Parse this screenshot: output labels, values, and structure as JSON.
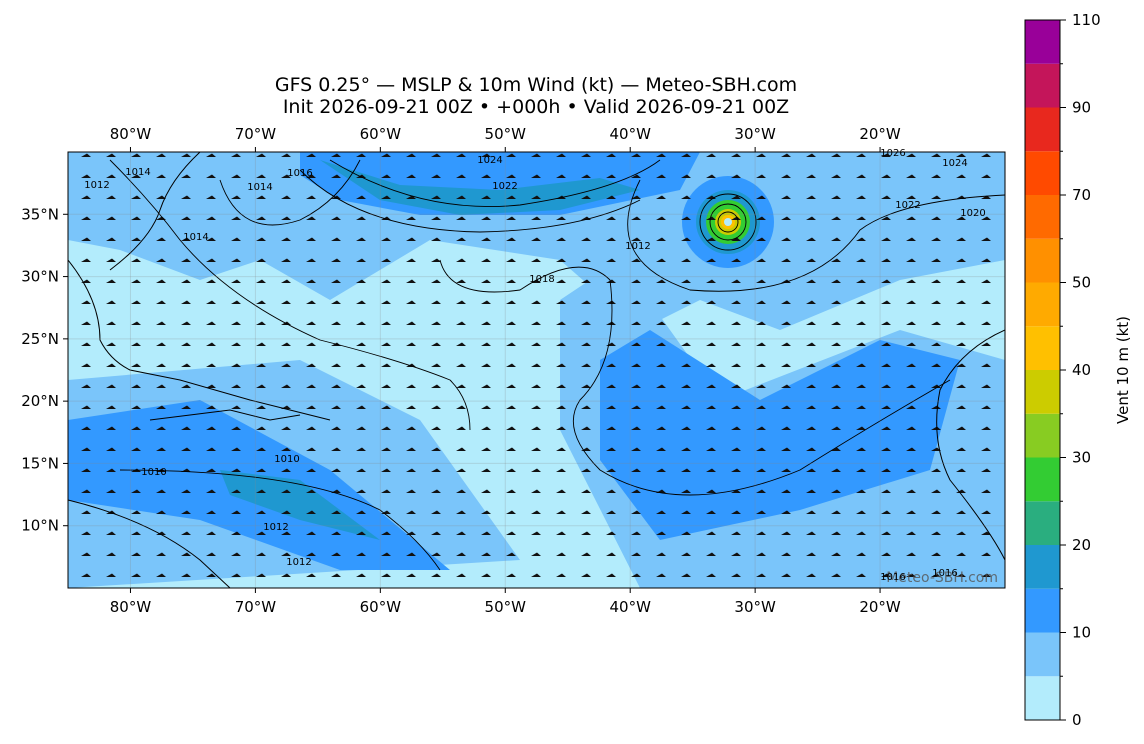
{
  "header": {
    "title": "GFS 0.25° — MSLP & 10m Wind (kt) — Meteo-SBH.com",
    "subtitle": "Init 2026-09-21 00Z • +000h • Valid 2026-09-21 00Z"
  },
  "map": {
    "xlim": [
      -85,
      -10
    ],
    "ylim": [
      5,
      40
    ],
    "xticks": [
      {
        "value": -80,
        "label": "80°W"
      },
      {
        "value": -70,
        "label": "70°W"
      },
      {
        "value": -60,
        "label": "60°W"
      },
      {
        "value": -50,
        "label": "50°W"
      },
      {
        "value": -40,
        "label": "40°W"
      },
      {
        "value": -30,
        "label": "30°W"
      },
      {
        "value": -20,
        "label": "20°W"
      }
    ],
    "yticks": [
      {
        "value": 10,
        "label": "10°N"
      },
      {
        "value": 15,
        "label": "15°N"
      },
      {
        "value": 20,
        "label": "20°N"
      },
      {
        "value": 25,
        "label": "25°N"
      },
      {
        "value": 30,
        "label": "30°N"
      },
      {
        "value": 35,
        "label": "35°N"
      }
    ],
    "contour_labels": [
      "1024",
      "1022",
      "1026",
      "1024",
      "1022",
      "1020",
      "1016",
      "1014",
      "1014",
      "1012",
      "1014",
      "1018",
      "1010",
      "1010",
      "1012",
      "1012",
      "1012",
      "1016",
      "1016"
    ],
    "watermark": "Meteo-SBH.com"
  },
  "colorbar": {
    "label": "Vent 10 m (kt)",
    "levels": [
      0,
      5,
      10,
      15,
      20,
      25,
      30,
      35,
      40,
      45,
      50,
      60,
      70,
      80,
      90,
      100,
      110
    ],
    "colors": [
      "#b3ecfc",
      "#7ac5fa",
      "#3399ff",
      "#1f98d0",
      "#2aae7f",
      "#33cc33",
      "#88cc22",
      "#cccc00",
      "#ffc000",
      "#ffaa00",
      "#ff9000",
      "#ff6a00",
      "#ff4a00",
      "#e8281e",
      "#c4155a",
      "#990099"
    ],
    "ticks": [
      0,
      10,
      20,
      30,
      40,
      50,
      70,
      90,
      110
    ]
  }
}
